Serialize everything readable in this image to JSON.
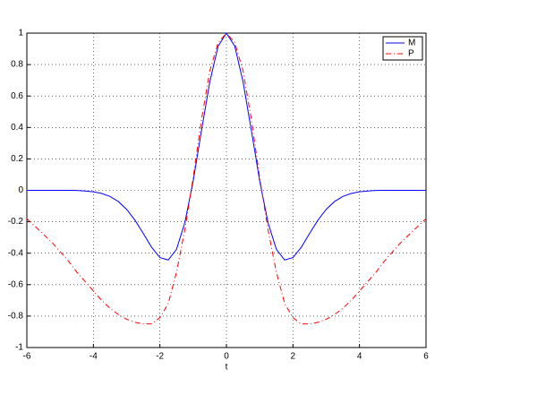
{
  "chart_data": {
    "type": "line",
    "x_label": "t",
    "x": [
      -6,
      -5.75,
      -5.5,
      -5.25,
      -5,
      -4.75,
      -4.5,
      -4.25,
      -4,
      -3.75,
      -3.5,
      -3.25,
      -3,
      -2.75,
      -2.5,
      -2.25,
      -2,
      -1.75,
      -1.5,
      -1.25,
      -1,
      -0.75,
      -0.5,
      -0.25,
      0,
      0.25,
      0.5,
      0.75,
      1,
      1.25,
      1.5,
      1.75,
      2,
      2.25,
      2.5,
      2.75,
      3,
      3.25,
      3.5,
      3.75,
      4,
      4.25,
      4.5,
      4.75,
      5,
      5.25,
      5.5,
      5.75,
      6
    ],
    "series": [
      {
        "name": "M",
        "color": "#0000ff",
        "dash": "solid",
        "values": [
          0,
          0,
          0,
          0,
          0,
          0,
          -0.001,
          -0.004,
          -0.009,
          -0.02,
          -0.039,
          -0.071,
          -0.121,
          -0.19,
          -0.274,
          -0.362,
          -0.428,
          -0.443,
          -0.375,
          -0.205,
          0.059,
          0.38,
          0.69,
          0.917,
          1,
          0.917,
          0.69,
          0.38,
          0.059,
          -0.205,
          -0.375,
          -0.443,
          -0.428,
          -0.362,
          -0.274,
          -0.19,
          -0.121,
          -0.071,
          -0.039,
          -0.02,
          -0.009,
          -0.004,
          -0.001,
          0,
          0,
          0,
          0,
          0,
          0
        ]
      },
      {
        "name": "P",
        "color": "#ff0000",
        "dash": "dashdot",
        "values": [
          -0.18,
          -0.23,
          -0.28,
          -0.33,
          -0.39,
          -0.45,
          -0.52,
          -0.58,
          -0.64,
          -0.7,
          -0.75,
          -0.79,
          -0.82,
          -0.84,
          -0.85,
          -0.85,
          -0.81,
          -0.72,
          -0.52,
          -0.25,
          0.08,
          0.45,
          0.76,
          0.94,
          1,
          0.94,
          0.76,
          0.45,
          0.08,
          -0.25,
          -0.52,
          -0.72,
          -0.81,
          -0.85,
          -0.85,
          -0.84,
          -0.82,
          -0.79,
          -0.75,
          -0.7,
          -0.64,
          -0.58,
          -0.52,
          -0.45,
          -0.39,
          -0.33,
          -0.28,
          -0.23,
          -0.18
        ]
      }
    ],
    "xlim": [
      -6,
      6
    ],
    "xticks": [
      -6,
      -4,
      -2,
      0,
      2,
      4,
      6
    ],
    "ylim": [
      -1,
      1
    ],
    "yticks": [
      -1,
      -0.8,
      -0.6,
      -0.4,
      -0.2,
      0,
      0.2,
      0.4,
      0.6,
      0.8,
      1
    ],
    "grid": true,
    "legend": "upper right"
  }
}
